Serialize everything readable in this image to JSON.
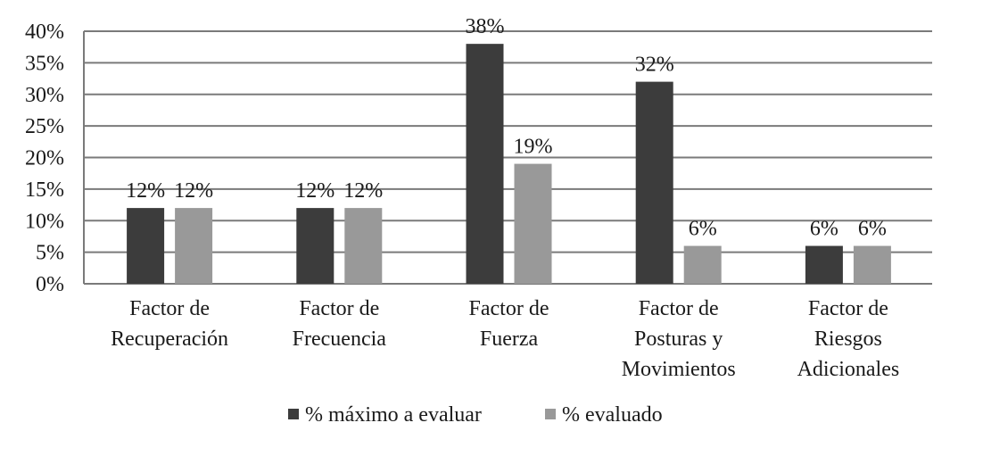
{
  "chart_data": {
    "type": "bar",
    "categories": [
      [
        "Factor de",
        "Recuperación"
      ],
      [
        "Factor de",
        "Frecuencia"
      ],
      [
        "Factor de",
        "Fuerza"
      ],
      [
        "Factor de",
        "Posturas y",
        "Movimientos"
      ],
      [
        "Factor de",
        "Riesgos",
        "Adicionales"
      ]
    ],
    "series": [
      {
        "name": "% máximo a evaluar",
        "values": [
          12,
          12,
          38,
          32,
          6
        ],
        "labels": [
          "12%",
          "12%",
          "38%",
          "32%",
          "6%"
        ],
        "color": "#3c3c3c"
      },
      {
        "name": "% evaluado",
        "values": [
          12,
          12,
          19,
          6,
          6
        ],
        "labels": [
          "12%",
          "12%",
          "19%",
          "6%",
          "6%"
        ],
        "color": "#999999"
      }
    ],
    "ylim": [
      0,
      40
    ],
    "yticks": [
      "0%",
      "5%",
      "10%",
      "15%",
      "20%",
      "25%",
      "30%",
      "35%",
      "40%"
    ],
    "grid": true,
    "legend": "bottom"
  }
}
